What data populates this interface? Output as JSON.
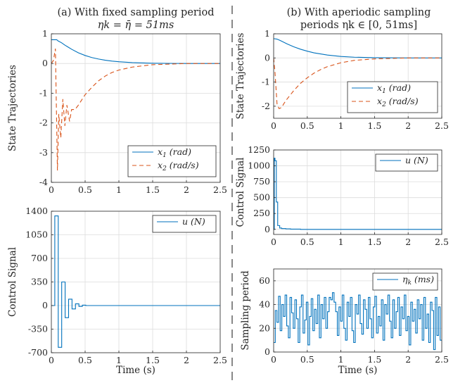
{
  "figure": {
    "left_title": [
      "(a) With fixed sampling period",
      "ηk = η̄ = 51ms"
    ],
    "right_title": [
      "(b) With aperiodic sampling",
      "periods ηk ∈ [0, 51ms]"
    ]
  },
  "colors": {
    "x1": "#0072BD",
    "x2": "#D95319",
    "u": "#0072BD",
    "eta": "#0072BD",
    "divider": "#555555"
  },
  "chart_data": [
    {
      "id": "a-state",
      "type": "line",
      "title": "(a) With fixed sampling period ηk = η̄ = 51ms",
      "xlabel": "",
      "ylabel": "State Trajectories",
      "xlim": [
        0,
        2.5
      ],
      "ylim": [
        -4,
        1
      ],
      "xticks": [
        0,
        0.5,
        1,
        1.5,
        2,
        2.5
      ],
      "xticklabels": [
        "0",
        "0.5",
        "1",
        "1.5",
        "2",
        "2.5"
      ],
      "yticks": [
        -4,
        -3,
        -2,
        -1,
        0,
        1
      ],
      "yticklabels": [
        "-4",
        "-3",
        "-2",
        "-1",
        "0",
        "1"
      ],
      "grid": true,
      "legend_position": "bottom-right",
      "series": [
        {
          "name": "x1 (rad)",
          "style": "solid",
          "color": "#0072BD",
          "x": [
            0,
            0.08,
            0.1,
            0.15,
            0.2,
            0.25,
            0.3,
            0.4,
            0.5,
            0.6,
            0.7,
            0.8,
            0.9,
            1.0,
            1.2,
            1.5,
            2.0,
            2.5
          ],
          "y": [
            0.8,
            0.8,
            0.76,
            0.7,
            0.62,
            0.55,
            0.48,
            0.36,
            0.27,
            0.2,
            0.15,
            0.11,
            0.08,
            0.06,
            0.03,
            0.01,
            0,
            0
          ]
        },
        {
          "name": "x2 (rad/s)",
          "style": "dashed",
          "color": "#D95319",
          "x": [
            0,
            0.03,
            0.06,
            0.09,
            0.11,
            0.14,
            0.17,
            0.2,
            0.23,
            0.27,
            0.3,
            0.35,
            0.4,
            0.5,
            0.6,
            0.7,
            0.8,
            0.9,
            1.0,
            1.2,
            1.5,
            2.0,
            2.5
          ],
          "y": [
            0,
            0.1,
            0.5,
            -3.6,
            -1.7,
            -2.5,
            -1.2,
            -2.1,
            -1.4,
            -1.95,
            -1.55,
            -1.55,
            -1.4,
            -1.05,
            -0.8,
            -0.58,
            -0.42,
            -0.3,
            -0.22,
            -0.12,
            -0.04,
            0,
            0
          ]
        }
      ]
    },
    {
      "id": "a-control",
      "type": "line",
      "xlabel": "Time (s)",
      "ylabel": "Control Signal",
      "xlim": [
        0,
        2.5
      ],
      "ylim": [
        -700,
        1400
      ],
      "xticks": [
        0,
        0.5,
        1,
        1.5,
        2,
        2.5
      ],
      "xticklabels": [
        "0",
        "0.5",
        "1",
        "1.5",
        "2",
        "2.5"
      ],
      "yticks": [
        -700,
        -350,
        0,
        350,
        700,
        1050,
        1400
      ],
      "yticklabels": [
        "-700",
        "-350",
        "0",
        "350",
        "700",
        "1050",
        "1400"
      ],
      "grid": true,
      "legend_position": "top-right",
      "series": [
        {
          "name": "u (N)",
          "style": "stairs",
          "color": "#0072BD",
          "x": [
            0,
            0.051,
            0.102,
            0.153,
            0.204,
            0.255,
            0.306,
            0.357,
            0.408,
            0.459,
            0.51,
            2.5
          ],
          "y": [
            0,
            1330,
            -620,
            350,
            -180,
            95,
            -50,
            25,
            -12,
            6,
            0,
            0
          ]
        }
      ]
    },
    {
      "id": "b-state",
      "type": "line",
      "title": "(b) With aperiodic sampling periods ηk ∈ [0, 51ms]",
      "xlabel": "",
      "ylabel": "State Trajectories",
      "xlim": [
        0,
        2.5
      ],
      "ylim": [
        -2.5,
        1
      ],
      "xticks": [
        0,
        0.5,
        1,
        1.5,
        2,
        2.5
      ],
      "xticklabels": [
        "0",
        "0.5",
        "1",
        "1.5",
        "2",
        "2.5"
      ],
      "yticks": [
        -2,
        -1,
        0,
        1
      ],
      "yticklabels": [
        "-2",
        "-1",
        "0",
        "1"
      ],
      "grid": true,
      "legend_position": "bottom-right",
      "series": [
        {
          "name": "x1 (rad)",
          "style": "solid",
          "color": "#0072BD",
          "x": [
            0,
            0.05,
            0.1,
            0.2,
            0.3,
            0.4,
            0.5,
            0.6,
            0.8,
            1.0,
            1.2,
            1.5,
            2.0,
            2.5
          ],
          "y": [
            0.8,
            0.78,
            0.72,
            0.58,
            0.46,
            0.36,
            0.28,
            0.21,
            0.12,
            0.06,
            0.03,
            0.01,
            0,
            0
          ]
        },
        {
          "name": "x2 (rad/s)",
          "style": "dashed",
          "color": "#D95319",
          "x": [
            0,
            0.02,
            0.05,
            0.08,
            0.12,
            0.15,
            0.2,
            0.3,
            0.4,
            0.5,
            0.6,
            0.7,
            0.8,
            1.0,
            1.2,
            1.5,
            2.0,
            2.5
          ],
          "y": [
            0,
            -0.6,
            -1.9,
            -2.1,
            -2.05,
            -1.9,
            -1.7,
            -1.35,
            -1.05,
            -0.82,
            -0.63,
            -0.48,
            -0.36,
            -0.2,
            -0.1,
            -0.04,
            0,
            0
          ]
        }
      ]
    },
    {
      "id": "b-control",
      "type": "line",
      "xlabel": "",
      "ylabel": "Control Signal",
      "xlim": [
        0,
        2.5
      ],
      "ylim": [
        -80,
        1250
      ],
      "xticks": [
        0,
        0.5,
        1,
        1.5,
        2,
        2.5
      ],
      "xticklabels": [
        "0",
        "0.5",
        "1",
        "1.5",
        "2",
        "2.5"
      ],
      "yticks": [
        0,
        250,
        500,
        750,
        1000,
        1250
      ],
      "yticklabels": [
        "0",
        "250",
        "500",
        "750",
        "1000",
        "1250"
      ],
      "grid": true,
      "legend_position": "top-right",
      "series": [
        {
          "name": "u (N)",
          "style": "stairs",
          "color": "#0072BD",
          "x": [
            0,
            0.01,
            0.02,
            0.04,
            0.06,
            0.09,
            0.12,
            0.18,
            0.25,
            0.4,
            2.5
          ],
          "y": [
            0,
            1120,
            1080,
            430,
            60,
            20,
            12,
            8,
            4,
            0,
            0
          ]
        }
      ]
    },
    {
      "id": "b-period",
      "type": "line",
      "xlabel": "Time (s)",
      "ylabel": "Sampling period",
      "xlim": [
        0,
        2.5
      ],
      "ylim": [
        0,
        70
      ],
      "xticks": [
        0,
        0.5,
        1,
        1.5,
        2,
        2.5
      ],
      "xticklabels": [
        "0",
        "0.5",
        "1",
        "1.5",
        "2",
        "2.5"
      ],
      "yticks": [
        0,
        20,
        40,
        60
      ],
      "yticklabels": [
        "0",
        "20",
        "40",
        "60"
      ],
      "grid": true,
      "legend_position": "top-right",
      "series": [
        {
          "name": "ηk(ms)",
          "style": "stairs",
          "color": "#0072BD",
          "y": [
            8,
            35,
            25,
            47,
            18,
            40,
            30,
            48,
            22,
            12,
            46,
            33,
            20,
            44,
            28,
            8,
            38,
            48,
            16,
            27,
            42,
            6,
            30,
            45,
            18,
            36,
            24,
            48,
            12,
            40,
            28,
            46,
            20,
            34,
            46,
            44,
            50,
            42,
            34,
            14,
            38,
            26,
            48,
            20,
            10,
            42,
            30,
            46,
            18,
            8,
            40,
            32,
            48,
            24,
            15,
            44,
            36,
            20,
            46,
            28,
            12,
            38,
            47,
            16,
            30,
            22,
            44,
            10,
            40,
            32,
            48,
            26,
            12,
            44,
            20,
            34,
            46,
            14,
            38,
            28,
            48,
            18,
            30,
            6,
            42,
            26,
            36,
            16,
            44,
            28,
            40,
            10,
            46,
            20,
            32,
            8,
            42,
            35,
            2,
            46,
            14,
            38,
            10
          ]
        }
      ]
    }
  ]
}
